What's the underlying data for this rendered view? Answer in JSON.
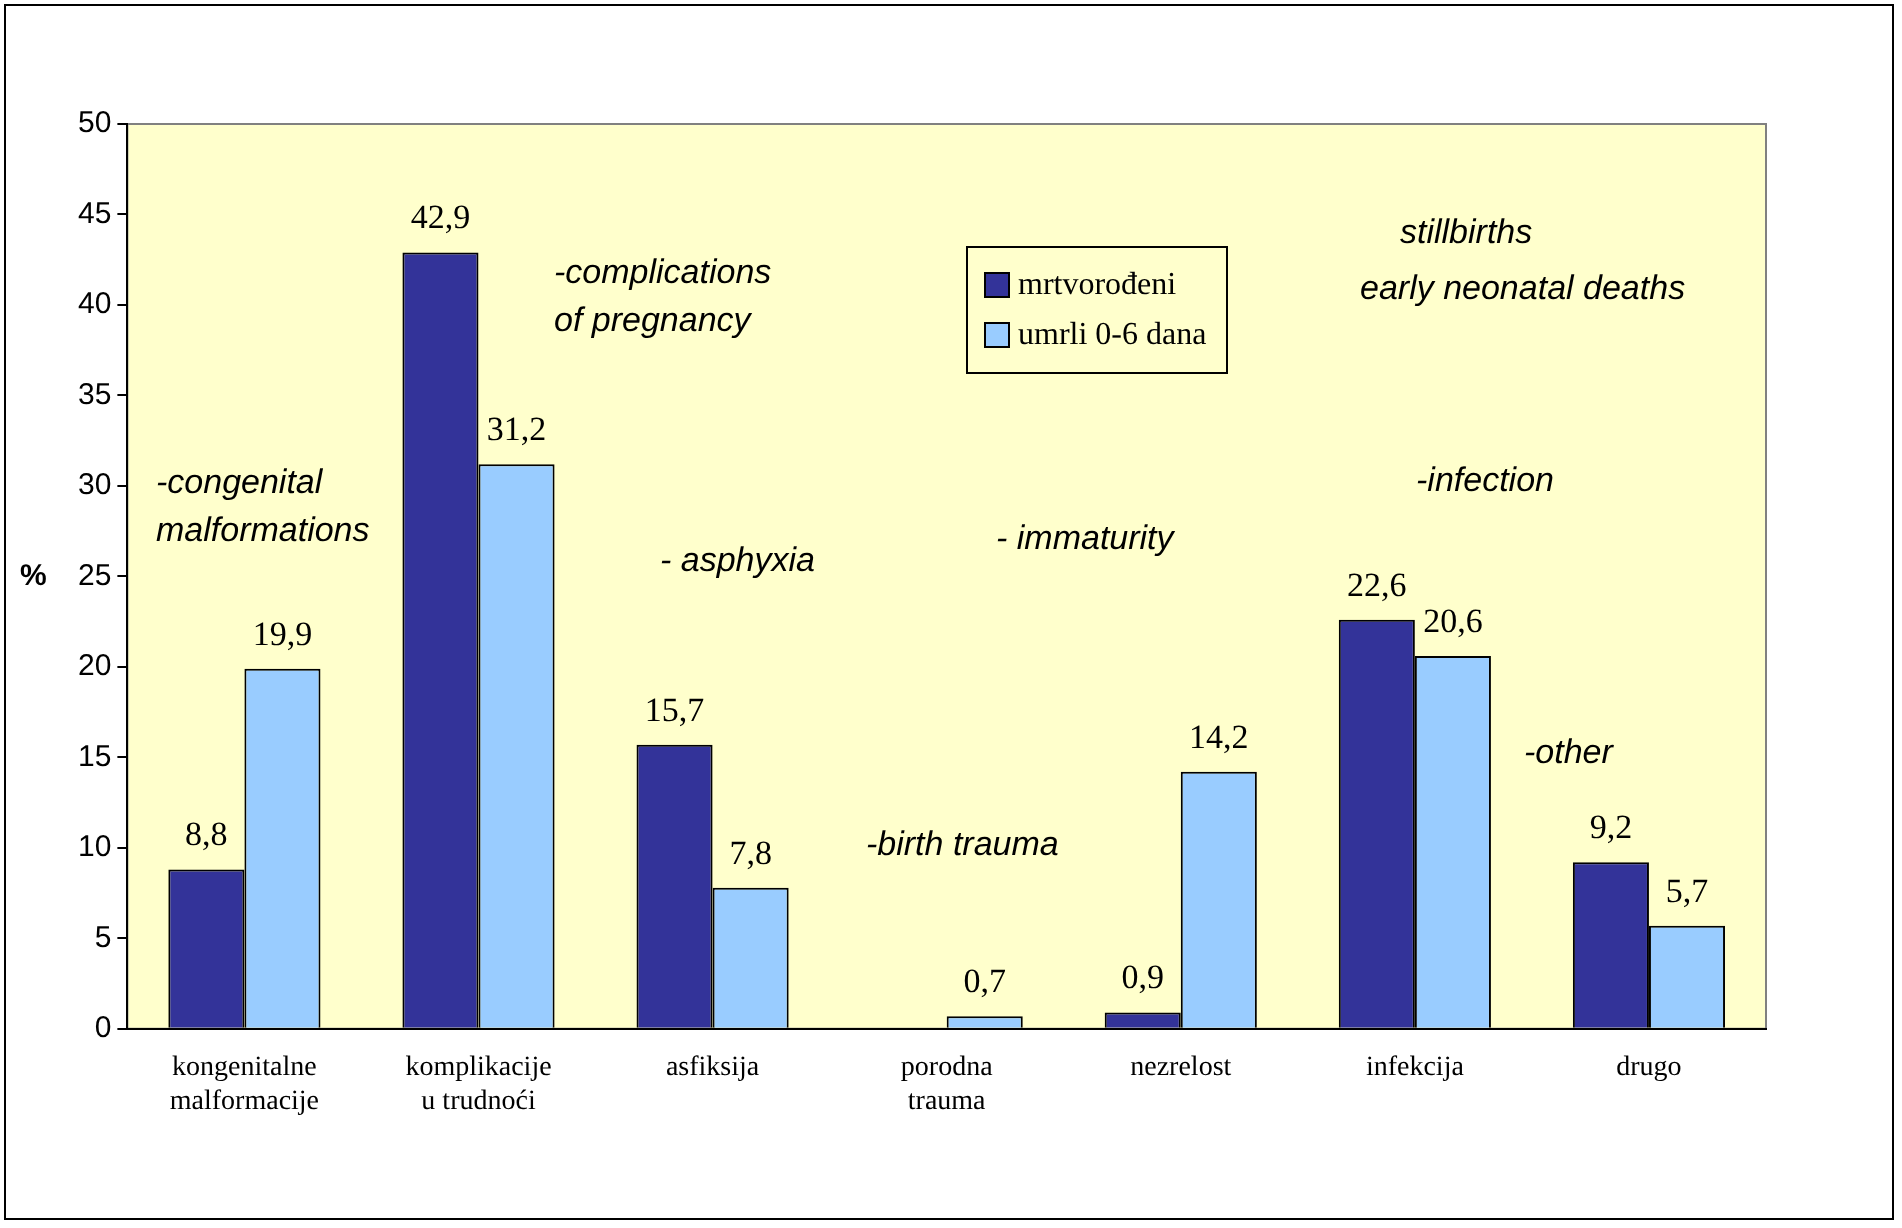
{
  "chart_data": {
    "type": "bar",
    "ylabel": "%",
    "categories": [
      "kongenitalne malformacije",
      "komplikacije u trudnoći",
      "asfiksija",
      "porodna trauma",
      "nezrelost",
      "infekcija",
      "drugo"
    ],
    "series": [
      {
        "name": "mrtvorođeni",
        "color": "#333399",
        "values": [
          8.8,
          42.9,
          15.7,
          null,
          0.9,
          22.6,
          9.2
        ],
        "value_labels": [
          "8,8",
          "42,9",
          "15,7",
          null,
          "0,9",
          "22,6",
          "9,2"
        ]
      },
      {
        "name": "umrli 0-6 dana",
        "color": "#99ccff",
        "values": [
          19.9,
          31.2,
          7.8,
          0.7,
          14.2,
          20.6,
          5.7
        ],
        "value_labels": [
          "19,9",
          "31,2",
          "7,8",
          "0,7",
          "14,2",
          "20,6",
          "5,7"
        ]
      }
    ],
    "ylim": [
      0,
      50
    ],
    "yticks": [
      0,
      5,
      10,
      15,
      20,
      25,
      30,
      35,
      40,
      45,
      50
    ],
    "grid": false,
    "legend": "top",
    "annotations": [
      "-congenital malformations",
      "-complications of pregnancy",
      "- asphyxia",
      "-birth trauma",
      "- immaturity",
      "-infection",
      "-other",
      "stillbirths",
      "early neonatal deaths"
    ]
  }
}
